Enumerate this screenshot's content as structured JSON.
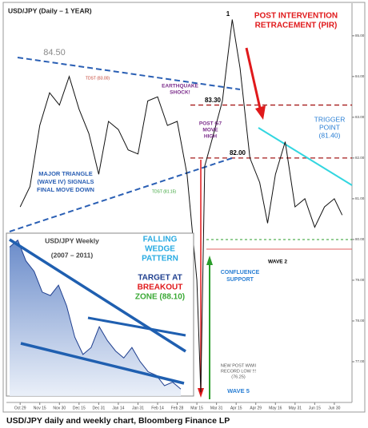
{
  "chart_data": [
    {
      "type": "line",
      "title": "USD/JPY (Daily – 1 YEAR)",
      "color": "#111111",
      "x": [
        0,
        0.5,
        1,
        1.5,
        2,
        2.5,
        3,
        3.5,
        4,
        4.5,
        5,
        5.5,
        6,
        6.5,
        7,
        7.5,
        8,
        8.5,
        9,
        9.2,
        9.4,
        9.8,
        10.3,
        10.8,
        11.2,
        11.7,
        12.2,
        12.6,
        13,
        13.5,
        14,
        14.5,
        15,
        15.5,
        16,
        16.4
      ],
      "values": [
        80.8,
        81.3,
        82.8,
        83.6,
        83.3,
        84.0,
        83.2,
        82.6,
        81.6,
        82.9,
        82.7,
        82.2,
        82.1,
        83.4,
        83.5,
        82.8,
        82.9,
        81.6,
        79.0,
        76.25,
        81.8,
        82.5,
        83.4,
        85.4,
        84.2,
        82.0,
        81.4,
        80.4,
        81.6,
        82.4,
        80.8,
        81.0,
        80.3,
        80.8,
        81.0,
        80.6
      ],
      "xlim": [
        -0.7,
        16.9
      ],
      "xticks": [
        {
          "value": 0,
          "label": "Oct 29"
        },
        {
          "value": 1,
          "label": "Nov 15"
        },
        {
          "value": 2,
          "label": "Nov 30"
        },
        {
          "value": 3,
          "label": "Dec 15"
        },
        {
          "value": 4,
          "label": "Dec 31"
        },
        {
          "value": 5,
          "label": "Jan 14"
        },
        {
          "value": 6,
          "label": "Jan 31"
        },
        {
          "value": 7,
          "label": "Feb 14"
        },
        {
          "value": 8,
          "label": "Feb 28"
        },
        {
          "value": 9,
          "label": "Mar 15"
        },
        {
          "value": 10,
          "label": "Mar 31"
        },
        {
          "value": 11,
          "label": "Apr 15"
        },
        {
          "value": 12,
          "label": "Apr 29"
        },
        {
          "value": 13,
          "label": "May 16"
        },
        {
          "value": 14,
          "label": "May 31"
        },
        {
          "value": 15,
          "label": "Jun 15"
        },
        {
          "value": 16,
          "label": "Jun 30"
        }
      ],
      "ylim": [
        76,
        85.8
      ],
      "yticks": [
        {
          "value": 77,
          "label": "77.00"
        },
        {
          "value": 78,
          "label": "78.00"
        },
        {
          "value": 79,
          "label": "79.00"
        },
        {
          "value": 80,
          "label": "80.00"
        },
        {
          "value": 81,
          "label": "81.00"
        },
        {
          "value": 82,
          "label": "82.00"
        },
        {
          "value": 83,
          "label": "83.00"
        },
        {
          "value": 84,
          "label": "84.00"
        },
        {
          "value": 85,
          "label": "85.00"
        }
      ],
      "levels": [
        {
          "value": 83.3,
          "color": "#a61b1b"
        },
        {
          "value": 82,
          "color": "#a61b1b"
        }
      ],
      "annotations": [
        {
          "lines": [
            "1"
          ],
          "color": "#000000"
        },
        {
          "lines": [
            "POST INTERVENTION",
            "RETRACEMENT (PIR)"
          ],
          "color": "#e0191b"
        },
        {
          "lines": [
            "84.50"
          ],
          "color": "#8a8a8a"
        },
        {
          "lines": [
            "TDST (83.00)"
          ],
          "color": "#c0392b"
        },
        {
          "lines": [
            "EARTHQUAKE",
            "SHOCK!"
          ],
          "color": "#7b2d8b"
        },
        {
          "lines": [
            "83.30"
          ],
          "color": "#000000"
        },
        {
          "lines": [
            "POST G7",
            "MOVE",
            "HIGH"
          ],
          "color": "#7b2d8b"
        },
        {
          "lines": [
            "82.00"
          ],
          "color": "#000000"
        },
        {
          "lines": [
            "TRIGGER",
            "POINT",
            "(81.40)"
          ],
          "color": "#2a7fd4"
        },
        {
          "lines": [
            "MAJOR TRIANGLE",
            "(WAVE IV) SIGNALS",
            "FINAL MOVE DOWN"
          ],
          "color": "#2a5fb4"
        },
        {
          "lines": [
            "TDST (81.15)"
          ],
          "color": "#2a9d2a"
        },
        {
          "lines": [
            "WAVE 2"
          ],
          "color": "#000000"
        },
        {
          "lines": [
            "CONFLUENCE",
            "SUPPORT"
          ],
          "color": "#2a7fd4"
        },
        {
          "lines": [
            "NEW POST WWII",
            "RECORD LOW !!!",
            "(76.25)"
          ],
          "color": "#555555"
        },
        {
          "lines": [
            "WAVE 5"
          ],
          "color": "#2a7fd4"
        }
      ]
    },
    {
      "type": "area",
      "title": "USD/JPY Weekly",
      "subtitle": "(2007 – 2011)",
      "color": "#5a7fc4",
      "values": [
        121,
        123,
        117,
        114,
        108,
        107,
        110,
        104,
        95,
        90,
        92,
        98,
        94,
        91,
        89,
        92,
        88,
        85,
        84,
        81,
        82,
        80
      ],
      "ylim": [
        78,
        125
      ],
      "annotations": [
        {
          "lines": [
            "FALLING",
            "WEDGE",
            "PATTERN"
          ],
          "color": "#29abe2"
        },
        {
          "lines": [
            "TARGET AT"
          ],
          "color": "#1f3f8f"
        },
        {
          "lines": [
            "BREAKOUT"
          ],
          "color": "#e0191b"
        },
        {
          "lines": [
            "ZONE (88.10)"
          ],
          "color": "#3aa935"
        }
      ]
    }
  ],
  "caption": "USD/JPY daily and weekly chart, Bloomberg Finance LP"
}
